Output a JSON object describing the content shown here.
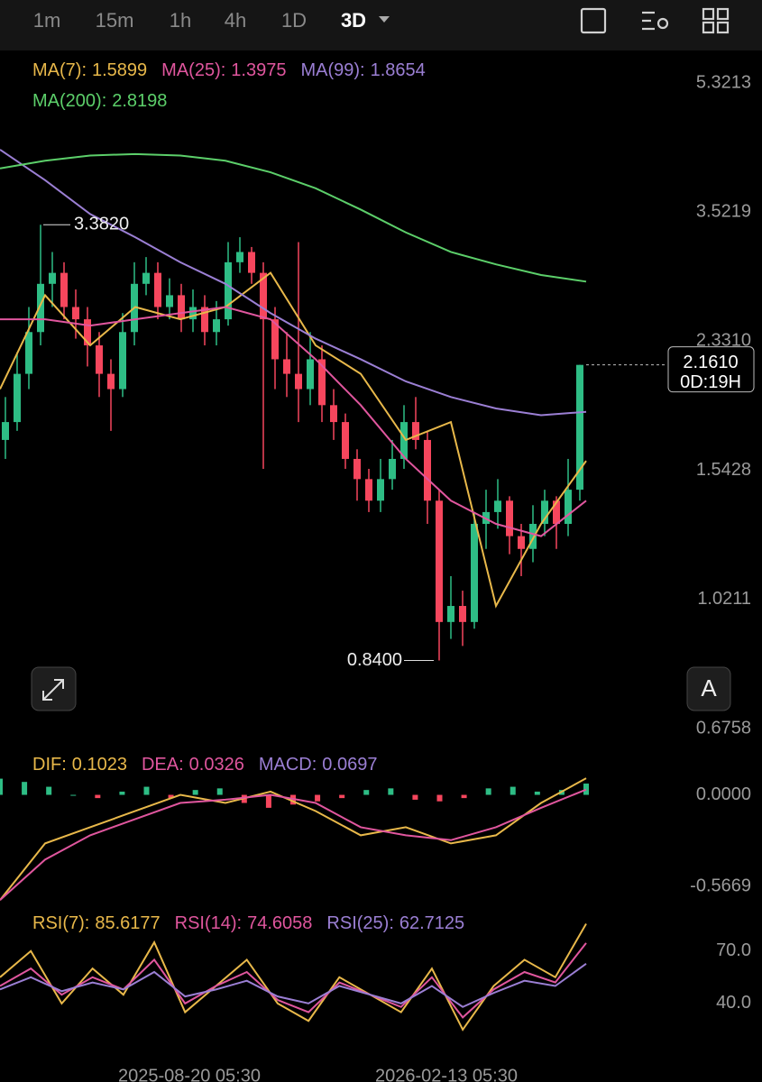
{
  "toolbar": {
    "intervals": [
      "1m",
      "15m",
      "1h",
      "4h",
      "1D",
      "3D"
    ],
    "active": 5
  },
  "chart_data": [
    {
      "type": "candlestick",
      "log_scale": true,
      "up_color": "#2ebd85",
      "down_color": "#f6465d",
      "ylim": [
        0.6758,
        5.3213
      ],
      "yticks": [
        5.3213,
        3.5219,
        {
          "value": 2.331,
          "label": "2.3310"
        },
        1.5428,
        1.0211,
        0.6758
      ],
      "candles": [
        [
          1.7,
          1.95,
          1.6,
          1.8
        ],
        [
          1.8,
          2.25,
          1.75,
          2.1
        ],
        [
          2.1,
          2.6,
          2.0,
          2.4
        ],
        [
          2.4,
          3.382,
          2.3,
          2.8
        ],
        [
          2.8,
          3.1,
          2.6,
          2.9
        ],
        [
          2.9,
          3.0,
          2.5,
          2.6
        ],
        [
          2.6,
          2.75,
          2.35,
          2.5
        ],
        [
          2.5,
          2.6,
          2.15,
          2.3
        ],
        [
          2.3,
          2.4,
          1.95,
          2.1
        ],
        [
          2.1,
          2.2,
          1.75,
          2.0
        ],
        [
          2.0,
          2.55,
          1.95,
          2.4
        ],
        [
          2.4,
          3.0,
          2.3,
          2.8
        ],
        [
          2.8,
          3.05,
          2.7,
          2.9
        ],
        [
          2.9,
          3.0,
          2.5,
          2.6
        ],
        [
          2.6,
          2.85,
          2.5,
          2.7
        ],
        [
          2.7,
          2.8,
          2.4,
          2.5
        ],
        [
          2.5,
          2.75,
          2.4,
          2.6
        ],
        [
          2.6,
          2.7,
          2.3,
          2.4
        ],
        [
          2.4,
          2.65,
          2.3,
          2.5
        ],
        [
          2.5,
          3.2,
          2.45,
          3.0
        ],
        [
          3.0,
          3.25,
          2.9,
          3.1
        ],
        [
          3.1,
          3.15,
          2.8,
          2.9
        ],
        [
          2.9,
          3.0,
          1.55,
          2.5
        ],
        [
          2.5,
          2.6,
          2.0,
          2.2
        ],
        [
          2.2,
          2.4,
          1.95,
          2.1
        ],
        [
          2.1,
          3.2,
          1.8,
          2.0
        ],
        [
          2.0,
          2.4,
          1.9,
          2.2
        ],
        [
          2.2,
          2.3,
          1.8,
          1.9
        ],
        [
          1.9,
          2.0,
          1.7,
          1.8
        ],
        [
          1.8,
          1.85,
          1.55,
          1.6
        ],
        [
          1.6,
          1.65,
          1.4,
          1.5
        ],
        [
          1.5,
          1.55,
          1.35,
          1.4
        ],
        [
          1.4,
          1.6,
          1.35,
          1.5
        ],
        [
          1.5,
          1.7,
          1.45,
          1.6
        ],
        [
          1.6,
          1.9,
          1.55,
          1.8
        ],
        [
          1.8,
          1.95,
          1.65,
          1.7
        ],
        [
          1.7,
          1.75,
          1.3,
          1.4
        ],
        [
          1.4,
          1.45,
          0.84,
          0.95
        ],
        [
          0.95,
          1.1,
          0.9,
          1.0
        ],
        [
          1.0,
          1.05,
          0.88,
          0.95
        ],
        [
          0.95,
          1.35,
          0.93,
          1.3
        ],
        [
          1.3,
          1.45,
          1.2,
          1.35
        ],
        [
          1.35,
          1.5,
          1.28,
          1.4
        ],
        [
          1.4,
          1.42,
          1.18,
          1.25
        ],
        [
          1.25,
          1.3,
          1.1,
          1.2
        ],
        [
          1.2,
          1.38,
          1.15,
          1.3
        ],
        [
          1.3,
          1.45,
          1.25,
          1.4
        ],
        [
          1.4,
          1.42,
          1.2,
          1.3
        ],
        [
          1.3,
          1.6,
          1.25,
          1.45
        ],
        [
          1.45,
          2.161,
          1.4,
          2.161
        ]
      ],
      "series": [
        {
          "name": "MA(7):",
          "value": 1.5899,
          "color": "#e8b84a",
          "values": [
            2.0,
            2.7,
            2.3,
            2.6,
            2.5,
            2.6,
            2.9,
            2.3,
            2.1,
            1.7,
            1.8,
            1.0,
            1.3,
            1.59
          ]
        },
        {
          "name": "MA(25):",
          "value": 1.3975,
          "color": "#e0569e",
          "values": [
            2.5,
            2.5,
            2.45,
            2.5,
            2.55,
            2.6,
            2.5,
            2.2,
            1.9,
            1.6,
            1.4,
            1.3,
            1.25,
            1.4
          ]
        },
        {
          "name": "MA(99):",
          "value": 1.8654,
          "color": "#9b7fd4",
          "values": [
            4.3,
            3.9,
            3.5,
            3.25,
            3.0,
            2.8,
            2.55,
            2.35,
            2.2,
            2.05,
            1.95,
            1.88,
            1.84,
            1.86
          ]
        },
        {
          "name": "MA(200):",
          "value": 2.8198,
          "color": "#5ccf6a",
          "values": [
            4.05,
            4.15,
            4.22,
            4.24,
            4.22,
            4.15,
            4.0,
            3.8,
            3.55,
            3.3,
            3.1,
            2.98,
            2.88,
            2.82
          ]
        }
      ],
      "annotations": {
        "high": {
          "value": 3.382,
          "label": "3.3820"
        },
        "low": {
          "value": 0.84,
          "label": "0.8400"
        }
      },
      "last_price": {
        "value": 2.161,
        "label": "2.1610"
      },
      "countdown": "0D:19H"
    },
    {
      "type": "macd",
      "ylim": [
        -0.66,
        0.12
      ],
      "yticks": [
        {
          "value": 0,
          "label": "0.0000"
        },
        -0.5669
      ],
      "series": [
        {
          "name": "DIF:",
          "value": 0.1023,
          "color": "#e8b84a",
          "values": [
            -0.65,
            -0.3,
            -0.2,
            -0.1,
            0.0,
            -0.05,
            0.02,
            -0.1,
            -0.25,
            -0.2,
            -0.3,
            -0.25,
            -0.05,
            0.1023
          ]
        },
        {
          "name": "DEA:",
          "value": 0.0326,
          "color": "#e0569e",
          "values": [
            -0.65,
            -0.4,
            -0.25,
            -0.15,
            -0.05,
            -0.03,
            0.0,
            -0.05,
            -0.2,
            -0.25,
            -0.28,
            -0.2,
            -0.08,
            0.0326
          ]
        }
      ],
      "histogram": {
        "name": "MACD:",
        "value": 0.0697,
        "color": "#9b7fd4",
        "up_color": "#2ebd85",
        "down_color": "#f6465d",
        "values": [
          0.1,
          0.08,
          0.05,
          0.0,
          -0.02,
          0.02,
          0.05,
          -0.02,
          0.03,
          0.04,
          -0.05,
          -0.08,
          -0.06,
          -0.04,
          -0.02,
          0.03,
          0.04,
          -0.03,
          -0.04,
          -0.02,
          0.04,
          0.05,
          0.02,
          0.03,
          0.0697
        ]
      }
    },
    {
      "type": "rsi",
      "ylim": [
        10,
        90
      ],
      "yticks": [
        {
          "value": 70,
          "label": "70.0"
        },
        {
          "value": 40,
          "label": "40.0"
        }
      ],
      "series": [
        {
          "name": "RSI(7):",
          "value": 85.6177,
          "color": "#e8b84a",
          "values": [
            55,
            70,
            40,
            60,
            45,
            75,
            35,
            50,
            65,
            40,
            30,
            55,
            45,
            35,
            60,
            25,
            50,
            65,
            55,
            85.6177
          ]
        },
        {
          "name": "RSI(14):",
          "value": 74.6058,
          "color": "#e0569e",
          "values": [
            50,
            60,
            45,
            55,
            48,
            65,
            40,
            50,
            58,
            42,
            35,
            52,
            45,
            38,
            55,
            32,
            48,
            58,
            52,
            74.6058
          ]
        },
        {
          "name": "RSI(25):",
          "value": 62.7125,
          "color": "#9b7fd4",
          "values": [
            48,
            55,
            47,
            52,
            48,
            58,
            44,
            48,
            53,
            44,
            40,
            50,
            45,
            40,
            50,
            38,
            46,
            53,
            50,
            62.7125
          ]
        }
      ]
    }
  ],
  "xtick_labels": [
    "2025-08-20 05:30",
    "2026-02-13 05:30"
  ]
}
